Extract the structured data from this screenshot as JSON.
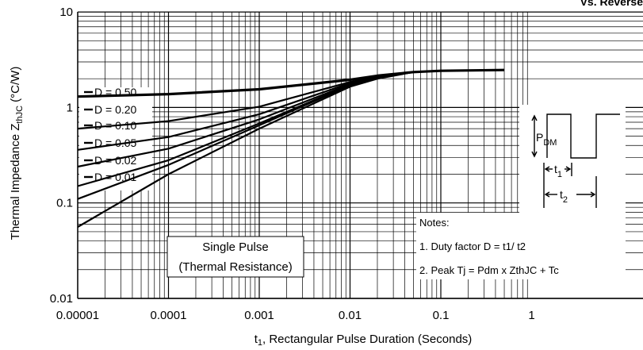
{
  "chart_data": {
    "type": "line",
    "title_fragment": "Vs. Reverse",
    "xlabel_main": "t",
    "xlabel_sub": "1",
    "xlabel_rest": ", Rectangular Pulse Duration (Seconds)",
    "ylabel_main": "Thermal Impedance  Z",
    "ylabel_sub": "thJC",
    "ylabel_rest": " (°C/W)",
    "x_scale": "log",
    "y_scale": "log",
    "xlim": [
      1e-05,
      1
    ],
    "ylim": [
      0.01,
      10
    ],
    "grid": true,
    "x_ticks": [
      {
        "value": 1e-05,
        "label": "0.00001"
      },
      {
        "value": 0.0001,
        "label": "0.0001"
      },
      {
        "value": 0.001,
        "label": "0.001"
      },
      {
        "value": 0.01,
        "label": "0.01"
      },
      {
        "value": 0.1,
        "label": "0.1"
      },
      {
        "value": 1,
        "label": "1"
      }
    ],
    "y_ticks": [
      {
        "value": 0.01,
        "label": "0.01"
      },
      {
        "value": 0.1,
        "label": "0.1"
      },
      {
        "value": 1,
        "label": "1"
      },
      {
        "value": 10,
        "label": "10"
      }
    ],
    "series": [
      {
        "name": "D = 0.50",
        "points": [
          [
            1e-05,
            1.3
          ],
          [
            0.0001,
            1.38
          ],
          [
            0.001,
            1.55
          ],
          [
            0.01,
            1.95
          ],
          [
            0.02,
            2.15
          ],
          [
            0.05,
            2.35
          ],
          [
            0.1,
            2.42
          ],
          [
            0.5,
            2.47
          ]
        ]
      },
      {
        "name": "D = 0.20",
        "points": [
          [
            1e-05,
            0.6
          ],
          [
            0.0001,
            0.72
          ],
          [
            0.001,
            1.02
          ],
          [
            0.01,
            1.85
          ],
          [
            0.02,
            2.1
          ],
          [
            0.05,
            2.35
          ],
          [
            0.1,
            2.42
          ],
          [
            0.5,
            2.47
          ]
        ]
      },
      {
        "name": "D = 0.10",
        "points": [
          [
            1e-05,
            0.36
          ],
          [
            0.0001,
            0.49
          ],
          [
            0.001,
            0.85
          ],
          [
            0.01,
            1.8
          ],
          [
            0.02,
            2.1
          ],
          [
            0.05,
            2.35
          ],
          [
            0.1,
            2.42
          ],
          [
            0.5,
            2.47
          ]
        ]
      },
      {
        "name": "D = 0.05",
        "points": [
          [
            1e-05,
            0.24
          ],
          [
            0.0001,
            0.37
          ],
          [
            0.001,
            0.75
          ],
          [
            0.01,
            1.75
          ],
          [
            0.02,
            2.05
          ],
          [
            0.05,
            2.35
          ],
          [
            0.1,
            2.42
          ],
          [
            0.5,
            2.47
          ]
        ]
      },
      {
        "name": "D = 0.02",
        "points": [
          [
            1e-05,
            0.15
          ],
          [
            0.0001,
            0.28
          ],
          [
            0.001,
            0.68
          ],
          [
            0.01,
            1.72
          ],
          [
            0.02,
            2.05
          ],
          [
            0.05,
            2.35
          ],
          [
            0.1,
            2.42
          ],
          [
            0.5,
            2.47
          ]
        ]
      },
      {
        "name": "D = 0.01",
        "points": [
          [
            1e-05,
            0.11
          ],
          [
            0.0001,
            0.25
          ],
          [
            0.001,
            0.65
          ],
          [
            0.01,
            1.7
          ],
          [
            0.02,
            2.05
          ],
          [
            0.05,
            2.35
          ],
          [
            0.1,
            2.42
          ],
          [
            0.5,
            2.47
          ]
        ]
      },
      {
        "name": "Single Pulse",
        "points": [
          [
            1e-05,
            0.056
          ],
          [
            0.0001,
            0.2
          ],
          [
            0.001,
            0.6
          ],
          [
            0.01,
            1.65
          ],
          [
            0.02,
            2.0
          ],
          [
            0.05,
            2.35
          ],
          [
            0.1,
            2.42
          ],
          [
            0.5,
            2.47
          ]
        ]
      }
    ],
    "curve_labels": [
      "D = 0.50",
      "D = 0.20",
      "D = 0.10",
      "D = 0.05",
      "D = 0.02",
      "D = 0.01"
    ],
    "single_pulse_label_1": "Single Pulse",
    "single_pulse_label_2": "(Thermal Resistance)",
    "notes_title": "Notes:",
    "note_1": "1. Duty factor D =  t1/ t2",
    "note_2": "2. Peak Tj = Pdm x ZthJC + Tc",
    "pulse_pdm_main": "P",
    "pulse_pdm_sub": "DM",
    "pulse_t1_main": "t",
    "pulse_t1_sub": "1",
    "pulse_t2_main": "t",
    "pulse_t2_sub": "2"
  }
}
